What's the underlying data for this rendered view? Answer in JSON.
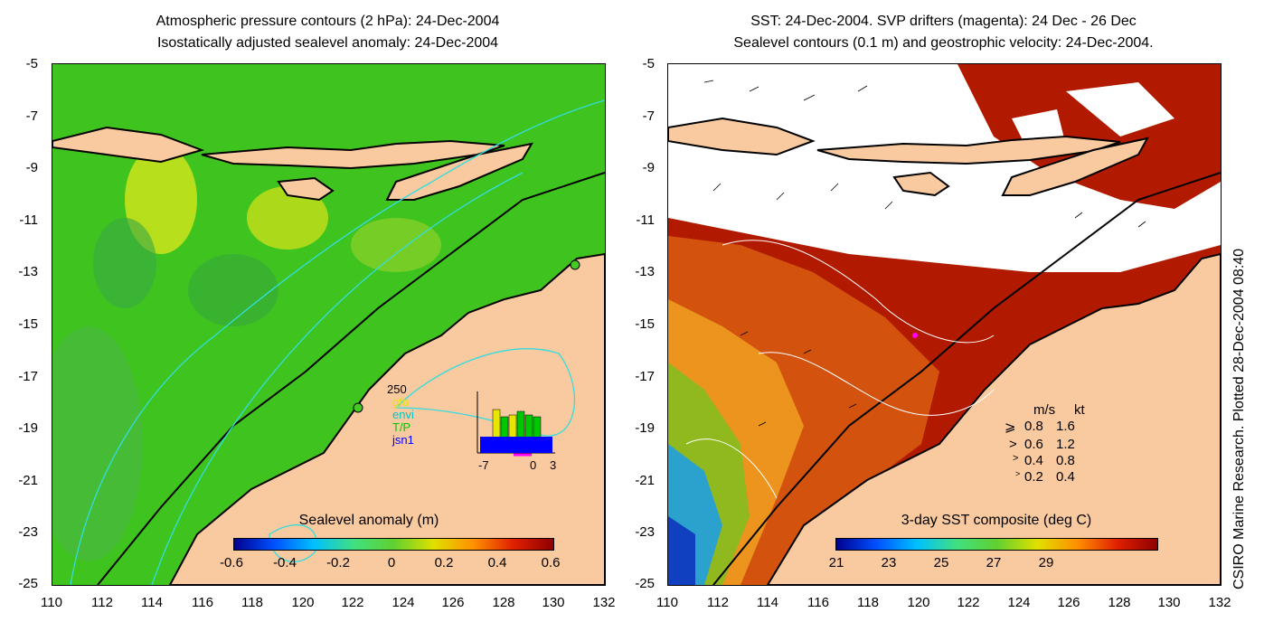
{
  "left_panel": {
    "title_line1": "Atmospheric pressure contours (2 hPa): 24-Dec-2004",
    "title_line2": "Isostatically adjusted sealevel anomaly: 24-Dec-2004",
    "y_ticks": [
      "-5",
      "-7",
      "-9",
      "-11",
      "-13",
      "-15",
      "-17",
      "-19",
      "-21",
      "-23",
      "-25"
    ],
    "x_ticks": [
      "110",
      "112",
      "114",
      "116",
      "118",
      "120",
      "122",
      "124",
      "126",
      "128",
      "130",
      "132"
    ],
    "colorbar": {
      "title": "Sealevel anomaly (m)",
      "labels": [
        "-0.6",
        "-0.4",
        "-0.2",
        "0",
        "0.2",
        "0.4",
        "0.6"
      ]
    },
    "inset": {
      "y_top": "250",
      "legend": [
        {
          "label": "gfo",
          "color": "#e6e600"
        },
        {
          "label": "envi",
          "color": "#00c8c8"
        },
        {
          "label": "T/P",
          "color": "#00c800"
        },
        {
          "label": "jsn1",
          "color": "#0000ff"
        }
      ],
      "x_labels": [
        "-7",
        "0",
        "3"
      ]
    }
  },
  "right_panel": {
    "title_line1": "SST: 24-Dec-2004. SVP drifters (magenta): 24 Dec - 26 Dec",
    "title_line2": "Sealevel contours (0.1 m) and geostrophic velocity: 24-Dec-2004.",
    "y_ticks": [
      "-5",
      "-7",
      "-9",
      "-11",
      "-13",
      "-15",
      "-17",
      "-19",
      "-21",
      "-23",
      "-25"
    ],
    "x_ticks": [
      "110",
      "112",
      "114",
      "116",
      "118",
      "120",
      "122",
      "124",
      "126",
      "128",
      "130",
      "132"
    ],
    "colorbar": {
      "title": "3-day SST composite (deg C)",
      "labels": [
        "21",
        "23",
        "25",
        "27",
        "29"
      ]
    },
    "speed_legend": {
      "header_ms": "m/s",
      "header_kt": "kt",
      "rows": [
        {
          "ms": "0.8",
          "kt": "1.6"
        },
        {
          "ms": "0.6",
          "kt": "1.2"
        },
        {
          "ms": "0.4",
          "kt": "0.8"
        },
        {
          "ms": "0.2",
          "kt": "0.4"
        }
      ]
    }
  },
  "side_note": "CSIRO Marine Research. Plotted 28-Dec-2004 08:40",
  "colors": {
    "land": "#f9c9a0",
    "ocean_green": "#44cc22",
    "sst_red": "#b21a00",
    "contour_cyan": "#33dddd"
  }
}
